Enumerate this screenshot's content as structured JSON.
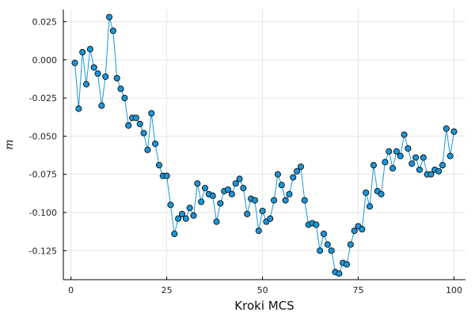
{
  "chart_data": {
    "type": "line",
    "title": "",
    "xlabel": "Kroki MCS",
    "ylabel": "m",
    "xlim": [
      -2,
      103
    ],
    "ylim": [
      -0.144,
      0.033
    ],
    "xticks": [
      0,
      25,
      50,
      75,
      100
    ],
    "yticks": [
      0.025,
      0.0,
      -0.025,
      -0.05,
      -0.075,
      -0.1,
      -0.125
    ],
    "ytick_labels": [
      "0.025",
      "0.000",
      "-0.025",
      "-0.050",
      "-0.075",
      "-0.100",
      "-0.125"
    ],
    "grid": true,
    "legend": "none",
    "series": [
      {
        "color": "#1a96d8",
        "marker_edge_color": "#0b0b0b",
        "x": [
          1,
          2,
          3,
          4,
          5,
          6,
          7,
          8,
          9,
          10,
          11,
          12,
          13,
          14,
          15,
          16,
          17,
          18,
          19,
          20,
          21,
          22,
          23,
          24,
          25,
          26,
          27,
          28,
          29,
          30,
          31,
          32,
          33,
          34,
          35,
          36,
          37,
          38,
          39,
          40,
          41,
          42,
          43,
          44,
          45,
          46,
          47,
          48,
          49,
          50,
          51,
          52,
          53,
          54,
          55,
          56,
          57,
          58,
          59,
          60,
          61,
          62,
          63,
          64,
          65,
          66,
          67,
          68,
          69,
          70,
          71,
          72,
          73,
          74,
          75,
          76,
          77,
          78,
          79,
          80,
          81,
          82,
          83,
          84,
          85,
          86,
          87,
          88,
          89,
          90,
          91,
          92,
          93,
          94,
          95,
          96,
          97,
          98,
          99,
          100
        ],
        "y": [
          -0.002,
          -0.032,
          0.005,
          -0.016,
          0.007,
          -0.005,
          -0.009,
          -0.03,
          -0.011,
          0.028,
          0.019,
          -0.012,
          -0.019,
          -0.025,
          -0.043,
          -0.038,
          -0.038,
          -0.042,
          -0.048,
          -0.059,
          -0.035,
          -0.055,
          -0.069,
          -0.076,
          -0.076,
          -0.095,
          -0.114,
          -0.104,
          -0.101,
          -0.104,
          -0.097,
          -0.102,
          -0.081,
          -0.093,
          -0.084,
          -0.088,
          -0.089,
          -0.106,
          -0.094,
          -0.086,
          -0.085,
          -0.088,
          -0.081,
          -0.078,
          -0.084,
          -0.101,
          -0.091,
          -0.092,
          -0.112,
          -0.099,
          -0.106,
          -0.104,
          -0.092,
          -0.075,
          -0.082,
          -0.092,
          -0.088,
          -0.077,
          -0.073,
          -0.07,
          -0.092,
          -0.108,
          -0.107,
          -0.108,
          -0.125,
          -0.114,
          -0.121,
          -0.125,
          -0.139,
          -0.14,
          -0.133,
          -0.134,
          -0.121,
          -0.112,
          -0.109,
          -0.111,
          -0.087,
          -0.096,
          -0.069,
          -0.086,
          -0.088,
          -0.067,
          -0.06,
          -0.071,
          -0.06,
          -0.063,
          -0.049,
          -0.058,
          -0.068,
          -0.064,
          -0.072,
          -0.064,
          -0.075,
          -0.075,
          -0.072,
          -0.073,
          -0.069,
          -0.045,
          -0.063,
          -0.047
        ]
      }
    ]
  }
}
